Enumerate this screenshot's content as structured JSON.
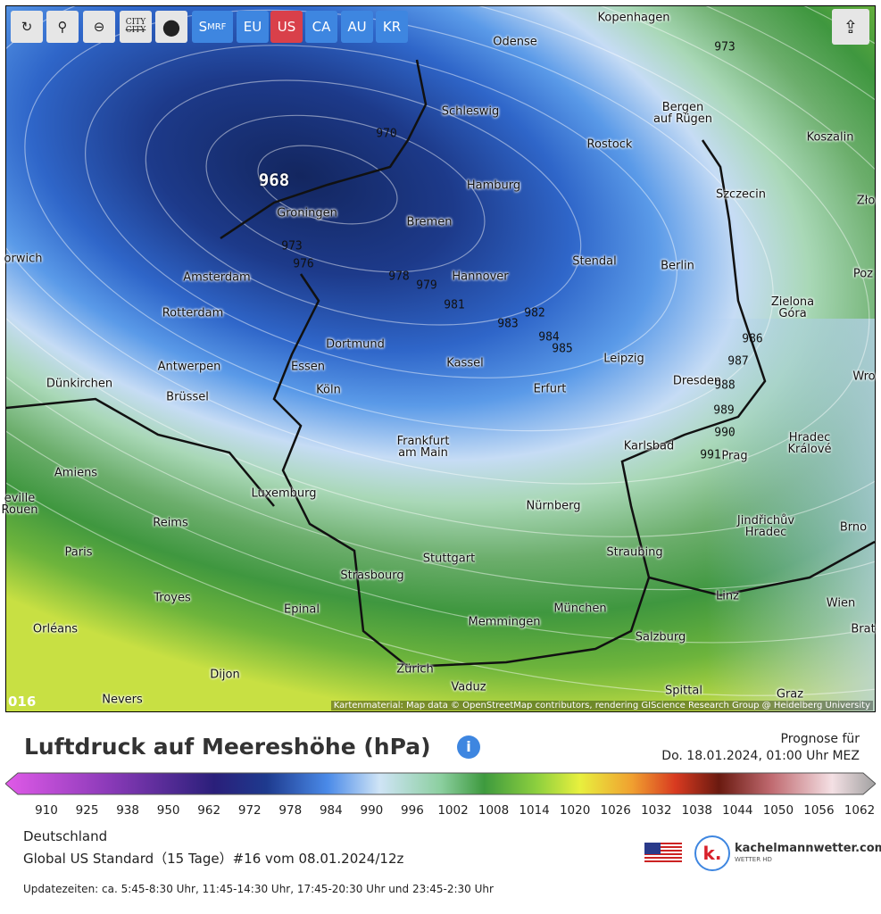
{
  "toolbar": {
    "city": [
      "CITY",
      "CITY"
    ],
    "smrf": {
      "main": "S",
      "sub": "MRF"
    },
    "regions": [
      "EU",
      "US",
      "CA",
      "AU",
      "KR"
    ]
  },
  "map": {
    "cities": [
      "Kopenhagen",
      "Odense",
      "Schleswig",
      "Bergen\nauf Rügen",
      "Rostock",
      "Koszalin",
      "Hamburg",
      "Szczecin",
      "Zło",
      "Groningen",
      "Bremen",
      "orwich",
      "Amsterdam",
      "Stendal",
      "Berlin",
      "Hannover",
      "Poz",
      "Rotterdam",
      "Zielona\nGóra",
      "Dortmund",
      "Essen",
      "Kassel",
      "Leipzig",
      "Antwerpen",
      "Dünkirchen",
      "Brüssel",
      "Köln",
      "Erfurt",
      "Dresden",
      "Wro",
      "Karlsbad",
      "Prag",
      "Hradec\nKrálové",
      "Frankfurt\nam Main",
      "Amiens",
      "Luxemburg",
      "Nürnberg",
      "eville\nRouen",
      "Reims",
      "Jindřichův\nHradec",
      "Brno",
      "Paris",
      "Stuttgart",
      "Straubing",
      "Strasbourg",
      "Troyes",
      "Epinal",
      "München",
      "Linz",
      "Wien",
      "Orléans",
      "Memmingen",
      "Salzburg",
      "Brat",
      "Dijon",
      "Zürich",
      "Vaduz",
      "Nevers",
      "Spittal",
      "Graz"
    ],
    "isobars": [
      968,
      970,
      973,
      973,
      976,
      978,
      979,
      981,
      982,
      983,
      984,
      985,
      986,
      987,
      988,
      989,
      990,
      991
    ],
    "frame": "016",
    "attribution": "Kartenmaterial: Map data © OpenStreetMap contributors, rendering GIScience Research Group @ Heidelberg University"
  },
  "header": {
    "title": "Luftdruck auf Meereshöhe (hPa)",
    "forecast": [
      "Prognose für",
      "Do. 18.01.2024, 01:00 Uhr MEZ"
    ]
  },
  "legend": {
    "ticks": [
      910,
      925,
      938,
      950,
      962,
      972,
      978,
      984,
      990,
      996,
      1002,
      1008,
      1014,
      1020,
      1026,
      1032,
      1038,
      1044,
      1050,
      1056,
      1062
    ]
  },
  "footer": {
    "region": "Deutschland",
    "model": "Global US Standard（15 Tage）#16 vom 08.01.2024/12z",
    "updates": "Updatezeiten: ca. 5:45-8:30 Uhr, 11:45-14:30 Uhr, 17:45-20:30 Uhr und 23:45-2:30 Uhr",
    "brand": "kachelmannwetter.com",
    "brand_sub": "WETTER HD",
    "logo": "k."
  }
}
